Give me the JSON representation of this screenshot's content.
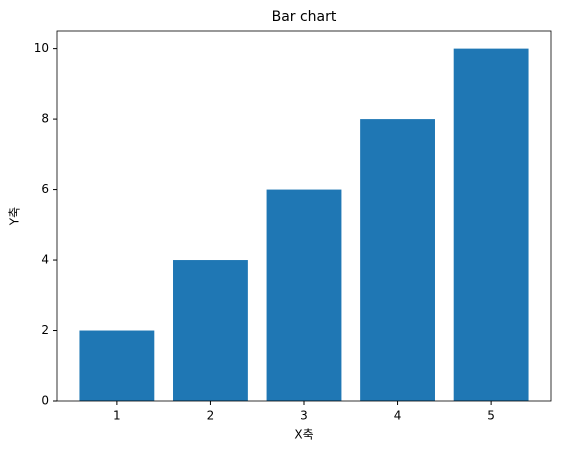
{
  "chart_data": {
    "type": "bar",
    "title": "Bar chart",
    "xlabel": "X축",
    "ylabel": "Y축",
    "x": [
      1,
      2,
      3,
      4,
      5
    ],
    "values": [
      2,
      4,
      6,
      8,
      10
    ],
    "color": "#1f77b4",
    "xlim": [
      0.36,
      5.64
    ],
    "xticks": [
      1,
      2,
      3,
      4,
      5
    ],
    "ylim": [
      0,
      10.5
    ],
    "yticks": [
      0,
      2,
      4,
      6,
      8,
      10
    ],
    "grid": false
  }
}
